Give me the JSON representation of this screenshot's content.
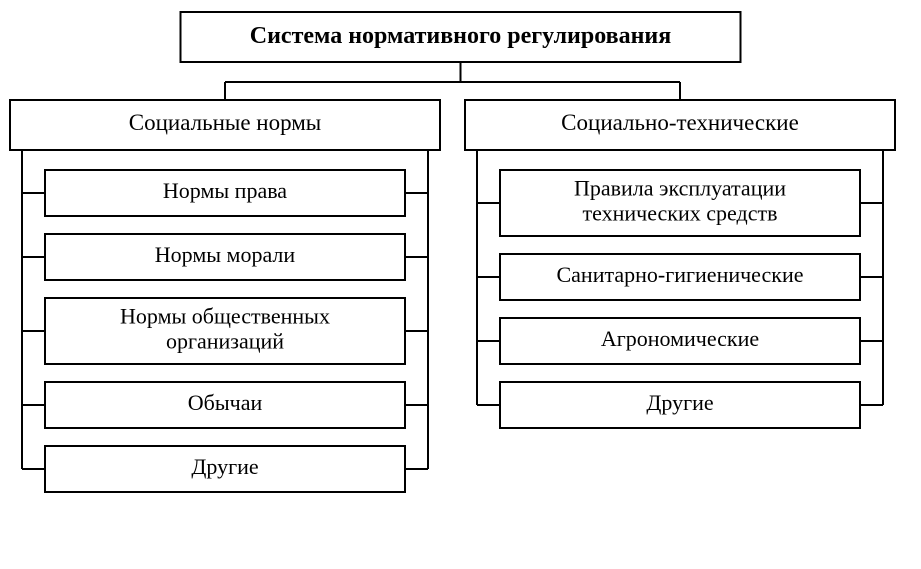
{
  "diagram": {
    "type": "tree",
    "background_color": "#ffffff",
    "stroke_color": "#000000",
    "stroke_width": 2,
    "font_family": "Georgia, 'Times New Roman', serif",
    "title_fontsize": 24,
    "category_fontsize": 23,
    "item_fontsize": 22,
    "root": {
      "text": "Система нормативного регулирования",
      "bold": true
    },
    "branches": [
      {
        "label": "Социальные нормы",
        "items": [
          "Нормы права",
          "Нормы морали",
          "Нормы общественных\nорганизаций",
          "Обычаи",
          "Другие"
        ]
      },
      {
        "label": "Социально-технические",
        "items": [
          "Правила эксплуатации\nтехнических средств",
          "Санитарно-гигиенические",
          "Агрономические",
          "Другие"
        ]
      }
    ]
  }
}
